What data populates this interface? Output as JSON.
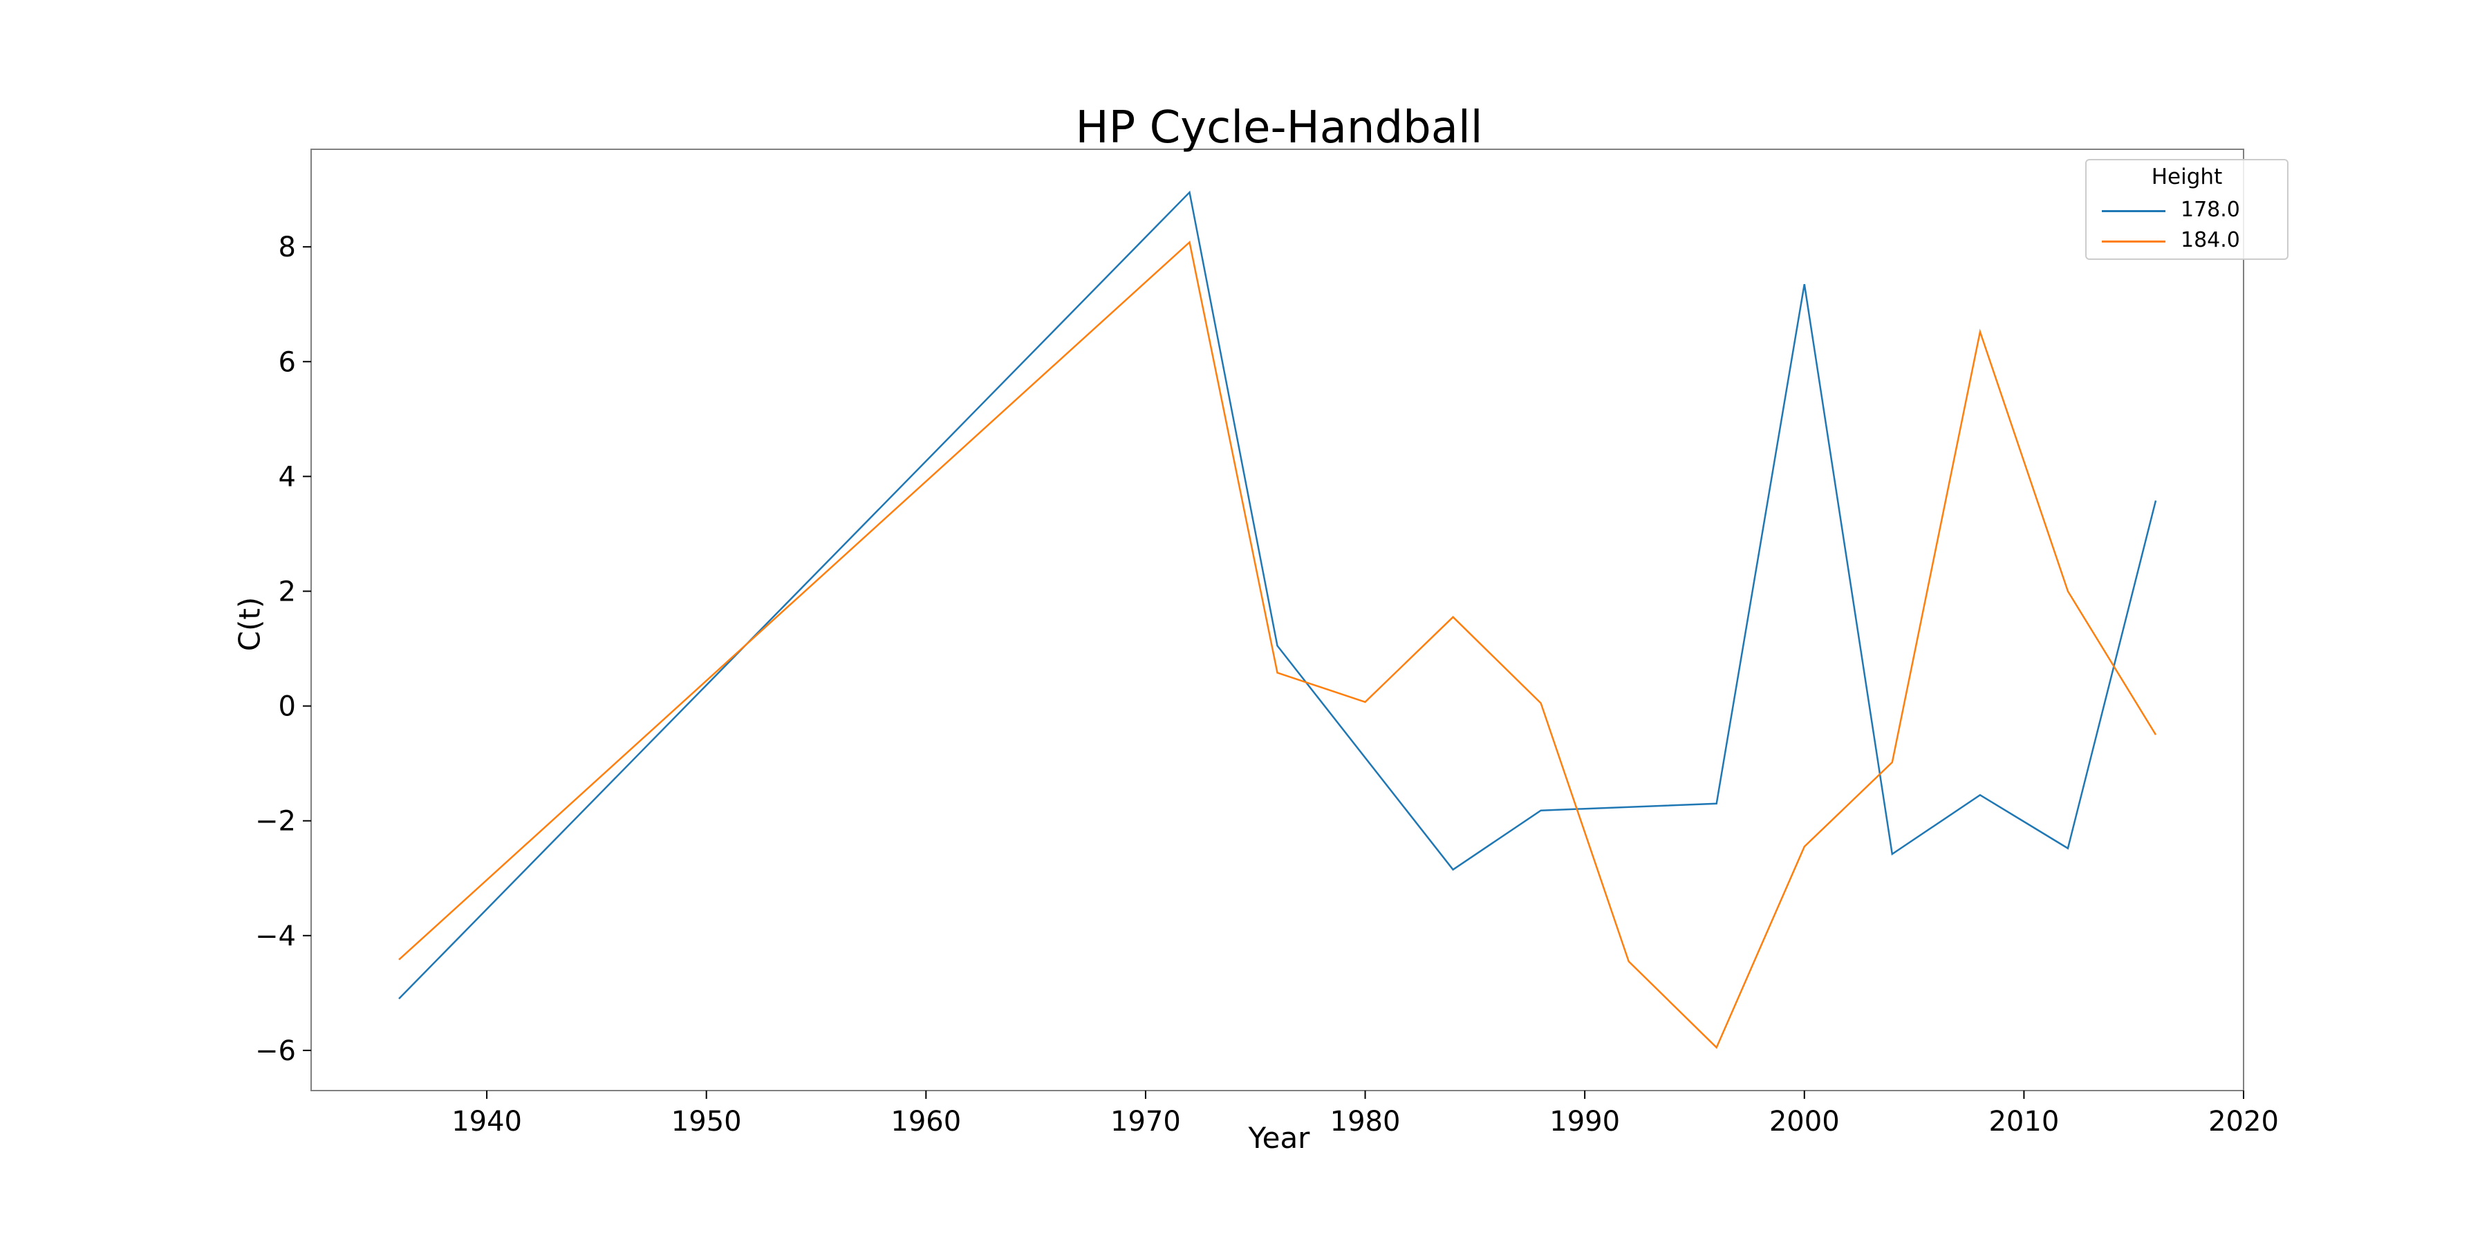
{
  "chart_data": {
    "type": "line",
    "title": "HP Cycle-Handball",
    "xlabel": "Year",
    "ylabel": "C(t)",
    "xlim": [
      1932,
      2020
    ],
    "ylim": [
      -6.7,
      9.7
    ],
    "xticks": [
      1940,
      1950,
      1960,
      1970,
      1980,
      1990,
      2000,
      2010,
      2020
    ],
    "yticks": [
      -6,
      -4,
      -2,
      0,
      2,
      4,
      6,
      8
    ],
    "grid": false,
    "legend": {
      "title": "Height",
      "position": "top-right"
    },
    "series": [
      {
        "name": "178.0",
        "color": "#1f77b4",
        "x": [
          1936,
          1972,
          1976,
          1984,
          1988,
          1996,
          2000,
          2004,
          2008,
          2012,
          2016
        ],
        "y": [
          -5.1,
          8.95,
          1.05,
          -2.85,
          -1.82,
          -1.7,
          7.35,
          -2.58,
          -1.55,
          -2.48,
          3.58
        ]
      },
      {
        "name": "184.0",
        "color": "#ff7f0e",
        "x": [
          1936,
          1972,
          1976,
          1980,
          1984,
          1988,
          1992,
          1996,
          2000,
          2004,
          2008,
          2012,
          2016
        ],
        "y": [
          -4.42,
          8.08,
          0.58,
          0.07,
          1.55,
          0.05,
          -4.45,
          -5.95,
          -2.45,
          -0.98,
          6.52,
          2.0,
          -0.5
        ]
      }
    ]
  }
}
